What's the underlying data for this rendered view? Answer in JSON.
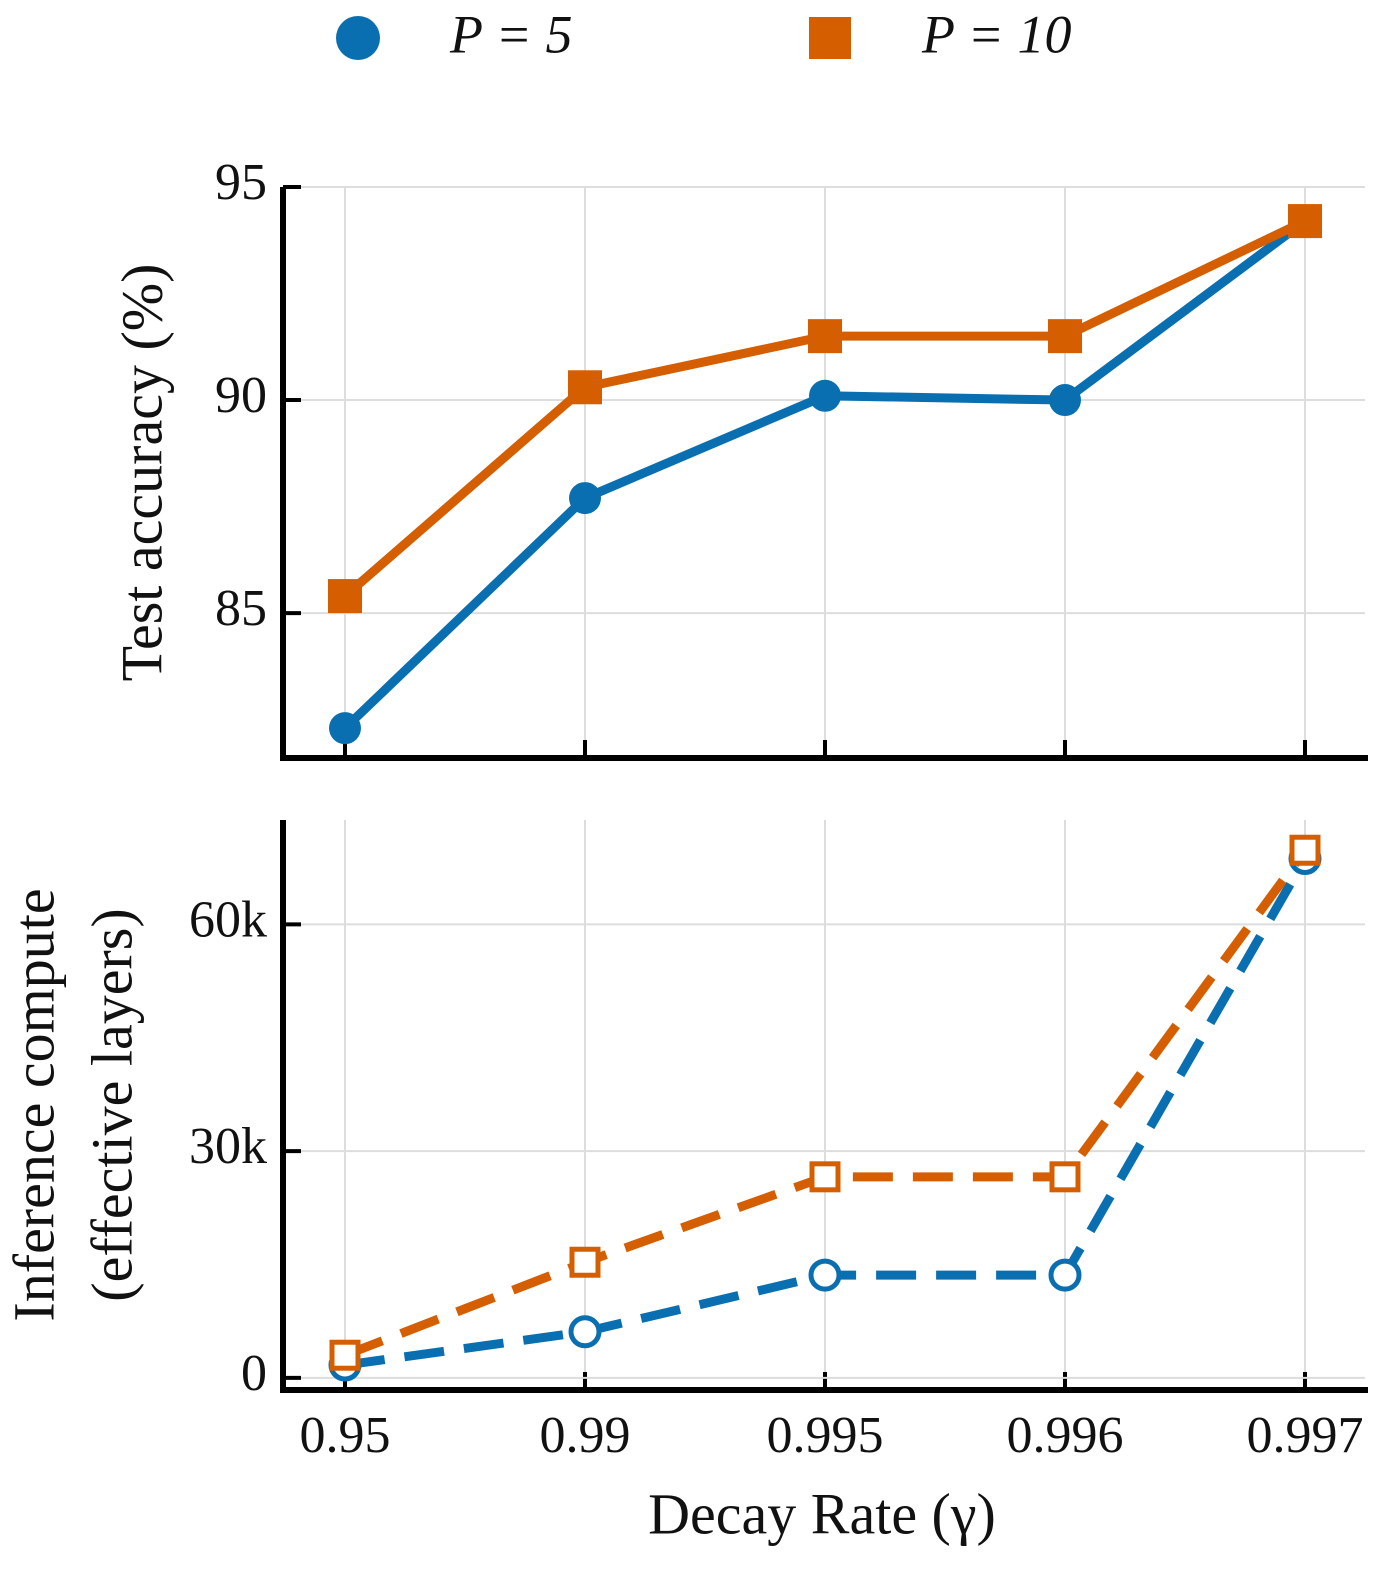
{
  "chart_data": [
    {
      "type": "line",
      "ylabel": "Test accuracy (%)",
      "categories": [
        null,
        null,
        null,
        null,
        null
      ],
      "ylim": [
        81.6,
        95
      ],
      "yticks": [
        85,
        90,
        95
      ],
      "grid": true,
      "legend": "top",
      "series": [
        {
          "name": "P = 5",
          "color": "#0a6fb0",
          "marker": "circle",
          "marker_fill": true,
          "line_style": "solid",
          "values": [
            82.3,
            87.7,
            90.1,
            90.0,
            94.2
          ]
        },
        {
          "name": "P = 10",
          "color": "#d45e00",
          "marker": "square",
          "marker_fill": true,
          "line_style": "solid",
          "values": [
            85.4,
            90.3,
            91.5,
            91.5,
            94.2
          ]
        }
      ]
    },
    {
      "type": "line",
      "ylabel": [
        "Inference compute",
        "(effective layers)"
      ],
      "xlabel": "Decay Rate (γ)",
      "categories": [
        "0.95",
        "0.99",
        "0.995",
        "0.996",
        "0.997"
      ],
      "ylim": [
        -1600,
        73800
      ],
      "yticks": [
        0,
        {
          "value": 30000,
          "label": "30k"
        },
        {
          "value": 60000,
          "label": "60k"
        }
      ],
      "grid": true,
      "series": [
        {
          "color": "#0a6fb0",
          "marker": "circle",
          "marker_fill": false,
          "line_style": "dashed",
          "values": [
            1700,
            6100,
            13600,
            13600,
            68700
          ]
        },
        {
          "color": "#d45e00",
          "marker": "square",
          "marker_fill": false,
          "line_style": "dashed",
          "values": [
            3000,
            15300,
            26600,
            26600,
            69800
          ]
        }
      ]
    }
  ]
}
